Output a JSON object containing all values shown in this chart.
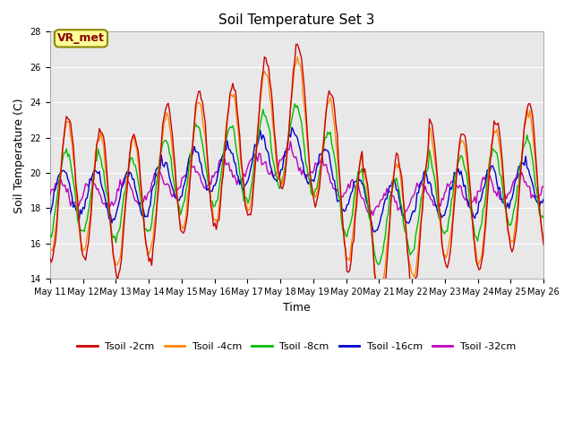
{
  "title": "Soil Temperature Set 3",
  "xlabel": "Time",
  "ylabel": "Soil Temperature (C)",
  "ylim": [
    14,
    28
  ],
  "yticks": [
    14,
    16,
    18,
    20,
    22,
    24,
    26,
    28
  ],
  "fig_bg_color": "#ffffff",
  "plot_bg_color": "#e8e8e8",
  "grid_color": "#ffffff",
  "series_colors": [
    "#cc0000",
    "#ff8800",
    "#00bb00",
    "#0000cc",
    "#bb00bb"
  ],
  "series_labels": [
    "Tsoil -2cm",
    "Tsoil -4cm",
    "Tsoil -8cm",
    "Tsoil -16cm",
    "Tsoil -32cm"
  ],
  "annotation_text": "VR_met",
  "annotation_color": "#880000",
  "annotation_bg": "#ffff99",
  "annotation_border": "#888800",
  "xtick_labels": [
    "May 11",
    "May 12",
    "May 13",
    "May 14",
    "May 15",
    "May 16",
    "May 17",
    "May 18",
    "May 19",
    "May 20",
    "May 21",
    "May 22",
    "May 23",
    "May 24",
    "May 25",
    "May 26"
  ],
  "title_fontsize": 11,
  "axis_fontsize": 9,
  "tick_fontsize": 7,
  "legend_fontsize": 8
}
